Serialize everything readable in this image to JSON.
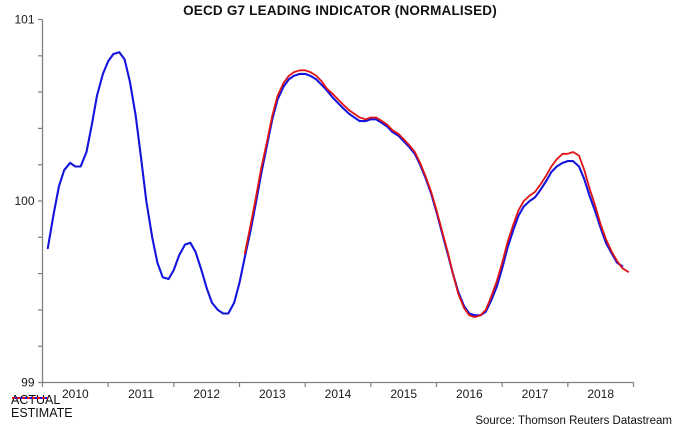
{
  "title": "OECD G7 LEADING INDICATOR (NORMALISED)",
  "source": "Source: Thomson Reuters Datastream",
  "colors": {
    "actual": "#1414dd",
    "estimate": "#e01414",
    "axis": "#808080",
    "text": "#1a1a1a",
    "background": "#ffffff"
  },
  "chart_data": {
    "type": "line",
    "title": "OECD G7 LEADING INDICATOR (NORMALISED)",
    "xlabel": "",
    "ylabel": "",
    "xlim": [
      2010,
      2019
    ],
    "ylim": [
      99,
      101
    ],
    "y_tick_labels": [
      "99",
      "100",
      "101"
    ],
    "y_tick_values": [
      99,
      100,
      101
    ],
    "y_minor_tick_step": 0.2,
    "x_tick_boundaries": [
      2010,
      2011,
      2012,
      2013,
      2014,
      2015,
      2016,
      2017,
      2018,
      2019
    ],
    "x_tick_labels": [
      "2010",
      "2011",
      "2012",
      "2013",
      "2014",
      "2015",
      "2016",
      "2017",
      "2018"
    ],
    "grid": false,
    "legend_position": "bottom-left",
    "series": [
      {
        "name": "ACTUAL",
        "color": "#1414dd",
        "line_style": "solid",
        "points": [
          [
            2010.08,
            99.74
          ],
          [
            2010.17,
            99.93
          ],
          [
            2010.25,
            100.08
          ],
          [
            2010.33,
            100.17
          ],
          [
            2010.42,
            100.21
          ],
          [
            2010.5,
            100.19
          ],
          [
            2010.58,
            100.19
          ],
          [
            2010.67,
            100.27
          ],
          [
            2010.75,
            100.42
          ],
          [
            2010.83,
            100.58
          ],
          [
            2010.92,
            100.7
          ],
          [
            2011.0,
            100.77
          ],
          [
            2011.08,
            100.81
          ],
          [
            2011.17,
            100.82
          ],
          [
            2011.25,
            100.78
          ],
          [
            2011.33,
            100.66
          ],
          [
            2011.42,
            100.47
          ],
          [
            2011.5,
            100.24
          ],
          [
            2011.58,
            100.0
          ],
          [
            2011.67,
            99.8
          ],
          [
            2011.75,
            99.66
          ],
          [
            2011.83,
            99.58
          ],
          [
            2011.92,
            99.57
          ],
          [
            2012.0,
            99.62
          ],
          [
            2012.08,
            99.7
          ],
          [
            2012.17,
            99.76
          ],
          [
            2012.25,
            99.77
          ],
          [
            2012.33,
            99.72
          ],
          [
            2012.42,
            99.62
          ],
          [
            2012.5,
            99.52
          ],
          [
            2012.58,
            99.44
          ],
          [
            2012.67,
            99.4
          ],
          [
            2012.75,
            99.38
          ],
          [
            2012.83,
            99.38
          ],
          [
            2012.92,
            99.44
          ],
          [
            2013.0,
            99.55
          ],
          [
            2013.08,
            99.69
          ],
          [
            2013.17,
            99.84
          ],
          [
            2013.25,
            99.99
          ],
          [
            2013.33,
            100.15
          ],
          [
            2013.42,
            100.31
          ],
          [
            2013.5,
            100.45
          ],
          [
            2013.58,
            100.56
          ],
          [
            2013.67,
            100.63
          ],
          [
            2013.75,
            100.67
          ],
          [
            2013.83,
            100.69
          ],
          [
            2013.92,
            100.7
          ],
          [
            2014.0,
            100.7
          ],
          [
            2014.08,
            100.69
          ],
          [
            2014.17,
            100.67
          ],
          [
            2014.25,
            100.64
          ],
          [
            2014.33,
            100.61
          ],
          [
            2014.42,
            100.57
          ],
          [
            2014.5,
            100.54
          ],
          [
            2014.58,
            100.51
          ],
          [
            2014.67,
            100.48
          ],
          [
            2014.75,
            100.46
          ],
          [
            2014.83,
            100.44
          ],
          [
            2014.92,
            100.44
          ],
          [
            2015.0,
            100.45
          ],
          [
            2015.08,
            100.45
          ],
          [
            2015.17,
            100.43
          ],
          [
            2015.25,
            100.41
          ],
          [
            2015.33,
            100.38
          ],
          [
            2015.42,
            100.36
          ],
          [
            2015.5,
            100.33
          ],
          [
            2015.58,
            100.3
          ],
          [
            2015.67,
            100.26
          ],
          [
            2015.75,
            100.2
          ],
          [
            2015.83,
            100.13
          ],
          [
            2015.92,
            100.04
          ],
          [
            2016.0,
            99.94
          ],
          [
            2016.08,
            99.83
          ],
          [
            2016.17,
            99.71
          ],
          [
            2016.25,
            99.6
          ],
          [
            2016.33,
            99.5
          ],
          [
            2016.42,
            99.42
          ],
          [
            2016.5,
            99.38
          ],
          [
            2016.58,
            99.37
          ],
          [
            2016.67,
            99.37
          ],
          [
            2016.75,
            99.39
          ],
          [
            2016.83,
            99.45
          ],
          [
            2016.92,
            99.53
          ],
          [
            2017.0,
            99.63
          ],
          [
            2017.08,
            99.74
          ],
          [
            2017.17,
            99.84
          ],
          [
            2017.25,
            99.92
          ],
          [
            2017.33,
            99.97
          ],
          [
            2017.42,
            100.0
          ],
          [
            2017.5,
            100.02
          ],
          [
            2017.58,
            100.06
          ],
          [
            2017.67,
            100.11
          ],
          [
            2017.75,
            100.16
          ],
          [
            2017.83,
            100.19
          ],
          [
            2017.92,
            100.21
          ],
          [
            2018.0,
            100.22
          ],
          [
            2018.08,
            100.22
          ],
          [
            2018.17,
            100.19
          ],
          [
            2018.25,
            100.12
          ],
          [
            2018.33,
            100.03
          ],
          [
            2018.42,
            99.94
          ],
          [
            2018.5,
            99.85
          ],
          [
            2018.58,
            99.77
          ],
          [
            2018.67,
            99.71
          ],
          [
            2018.75,
            99.66
          ],
          [
            2018.83,
            99.64
          ]
        ]
      },
      {
        "name": "ESTIMATE",
        "color": "#e01414",
        "line_style": "solid",
        "legend_dash": "3 2",
        "points": [
          [
            2013.08,
            99.71
          ],
          [
            2013.17,
            99.87
          ],
          [
            2013.25,
            100.02
          ],
          [
            2013.33,
            100.18
          ],
          [
            2013.42,
            100.33
          ],
          [
            2013.5,
            100.47
          ],
          [
            2013.58,
            100.58
          ],
          [
            2013.67,
            100.65
          ],
          [
            2013.75,
            100.69
          ],
          [
            2013.83,
            100.71
          ],
          [
            2013.92,
            100.72
          ],
          [
            2014.0,
            100.72
          ],
          [
            2014.08,
            100.71
          ],
          [
            2014.17,
            100.69
          ],
          [
            2014.25,
            100.66
          ],
          [
            2014.33,
            100.62
          ],
          [
            2014.42,
            100.59
          ],
          [
            2014.5,
            100.56
          ],
          [
            2014.58,
            100.53
          ],
          [
            2014.67,
            100.5
          ],
          [
            2014.75,
            100.48
          ],
          [
            2014.83,
            100.46
          ],
          [
            2014.92,
            100.45
          ],
          [
            2015.0,
            100.46
          ],
          [
            2015.08,
            100.46
          ],
          [
            2015.17,
            100.44
          ],
          [
            2015.25,
            100.42
          ],
          [
            2015.33,
            100.39
          ],
          [
            2015.42,
            100.37
          ],
          [
            2015.5,
            100.34
          ],
          [
            2015.58,
            100.31
          ],
          [
            2015.67,
            100.27
          ],
          [
            2015.75,
            100.21
          ],
          [
            2015.83,
            100.14
          ],
          [
            2015.92,
            100.05
          ],
          [
            2016.0,
            99.95
          ],
          [
            2016.08,
            99.84
          ],
          [
            2016.17,
            99.72
          ],
          [
            2016.25,
            99.6
          ],
          [
            2016.33,
            99.49
          ],
          [
            2016.42,
            99.41
          ],
          [
            2016.5,
            99.37
          ],
          [
            2016.58,
            99.36
          ],
          [
            2016.67,
            99.37
          ],
          [
            2016.75,
            99.4
          ],
          [
            2016.83,
            99.47
          ],
          [
            2016.92,
            99.56
          ],
          [
            2017.0,
            99.66
          ],
          [
            2017.08,
            99.77
          ],
          [
            2017.17,
            99.87
          ],
          [
            2017.25,
            99.95
          ],
          [
            2017.33,
            100.0
          ],
          [
            2017.42,
            100.03
          ],
          [
            2017.5,
            100.05
          ],
          [
            2017.58,
            100.09
          ],
          [
            2017.67,
            100.14
          ],
          [
            2017.75,
            100.19
          ],
          [
            2017.83,
            100.23
          ],
          [
            2017.92,
            100.26
          ],
          [
            2018.0,
            100.26
          ],
          [
            2018.08,
            100.27
          ],
          [
            2018.17,
            100.25
          ],
          [
            2018.25,
            100.17
          ],
          [
            2018.33,
            100.07
          ],
          [
            2018.42,
            99.97
          ],
          [
            2018.5,
            99.87
          ],
          [
            2018.58,
            99.79
          ],
          [
            2018.67,
            99.72
          ],
          [
            2018.75,
            99.67
          ],
          [
            2018.83,
            99.63
          ],
          [
            2018.92,
            99.61
          ]
        ]
      }
    ]
  }
}
